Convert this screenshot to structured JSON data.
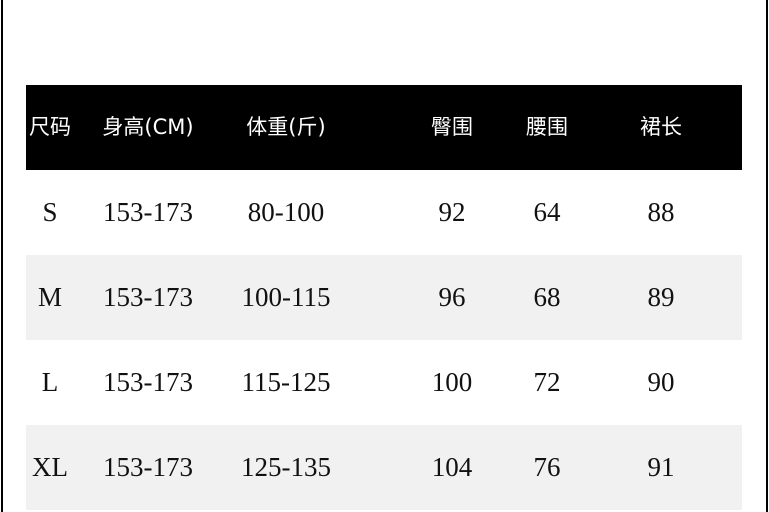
{
  "table": {
    "headers": [
      "尺码",
      "身高(CM)",
      "体重(斤)",
      "臀围",
      "腰围",
      "裙长"
    ],
    "rows": [
      [
        "S",
        "153-173",
        "80-100",
        "92",
        "64",
        "88"
      ],
      [
        "M",
        "153-173",
        "100-115",
        "96",
        "68",
        "89"
      ],
      [
        "L",
        "153-173",
        "115-125",
        "100",
        "72",
        "90"
      ],
      [
        "XL",
        "153-173",
        "125-135",
        "104",
        "76",
        "91"
      ]
    ]
  },
  "colors": {
    "header_bg": "#000000",
    "header_text": "#ffffff",
    "alt_row_bg": "#f1f1f1"
  }
}
